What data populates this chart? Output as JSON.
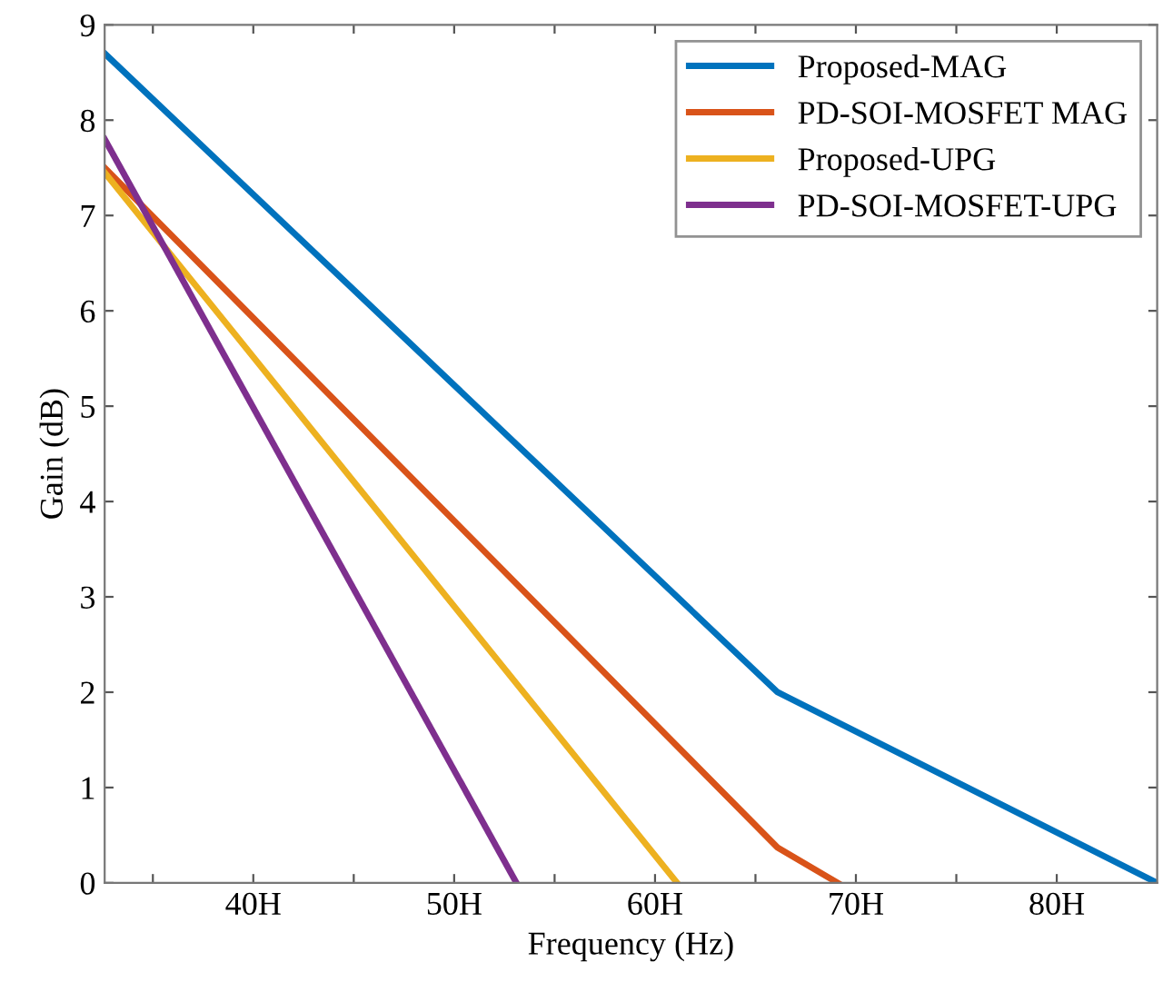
{
  "chart_data": {
    "type": "line",
    "xlabel": "Frequency (Hz)",
    "ylabel": "Gain (dB)",
    "xlim": [
      32.6,
      85
    ],
    "ylim": [
      0,
      9
    ],
    "xticks": [
      {
        "value": 35,
        "label": null
      },
      {
        "value": 40,
        "label": "40H"
      },
      {
        "value": 45,
        "label": null
      },
      {
        "value": 50,
        "label": "50H"
      },
      {
        "value": 55,
        "label": null
      },
      {
        "value": 60,
        "label": "60H"
      },
      {
        "value": 65,
        "label": null
      },
      {
        "value": 70,
        "label": "70H"
      },
      {
        "value": 75,
        "label": null
      },
      {
        "value": 80,
        "label": "80H"
      }
    ],
    "yticks": [
      0,
      1,
      2,
      3,
      4,
      5,
      6,
      7,
      8,
      9
    ],
    "grid": false,
    "legend": "top right",
    "line_style": "solid",
    "marker": "none",
    "series": [
      {
        "name": "Proposed-MAG",
        "color": "#0072bd",
        "x": [
          32.6,
          66.1,
          85
        ],
        "values": [
          8.7,
          2.0,
          0
        ]
      },
      {
        "name": "PD-SOI-MOSFET MAG",
        "color": "#d95319",
        "x": [
          32.6,
          66.1,
          69.1
        ],
        "values": [
          7.5,
          0.37,
          0
        ]
      },
      {
        "name": "Proposed-UPG",
        "color": "#edb120",
        "x": [
          32.6,
          61.1
        ],
        "values": [
          7.45,
          0
        ]
      },
      {
        "name": "PD-SOI-MOSFET-UPG",
        "color": "#7e2f8e",
        "x": [
          32.6,
          53.1
        ],
        "values": [
          7.8,
          0
        ]
      }
    ]
  }
}
